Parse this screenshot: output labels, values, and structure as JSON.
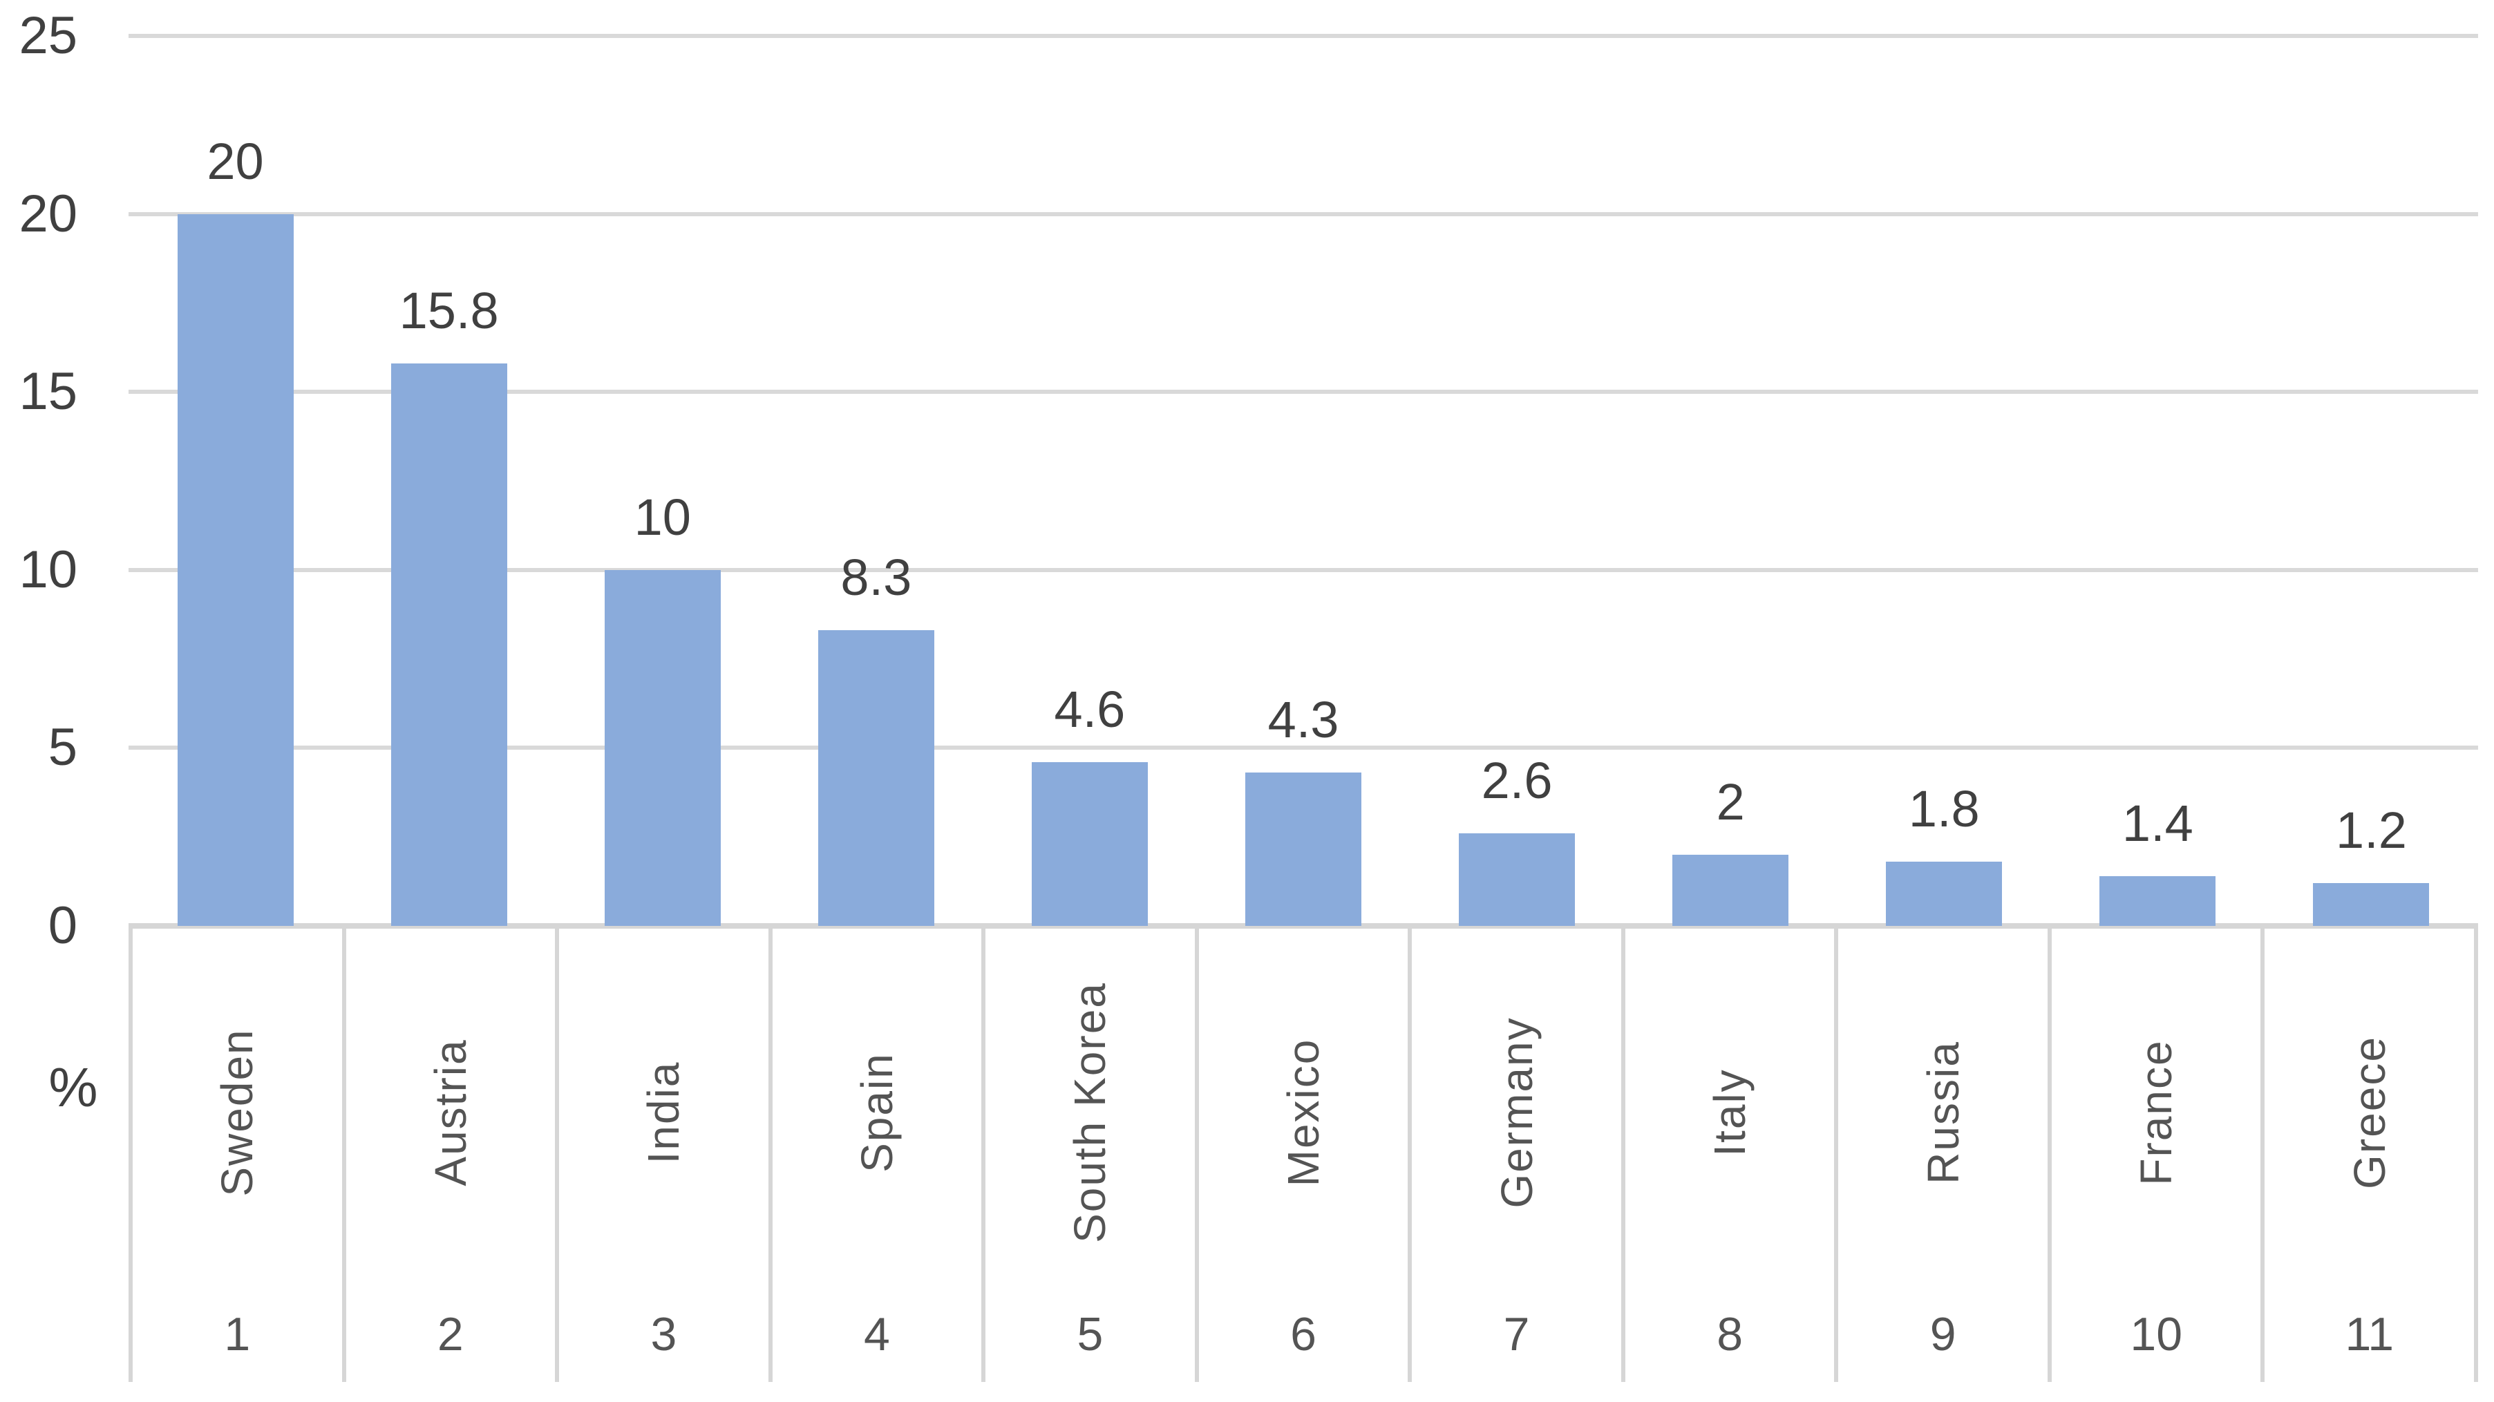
{
  "chart_data": {
    "type": "bar",
    "title": "",
    "xlabel": "",
    "ylabel": "%",
    "categories": [
      "Sweden",
      "Austria",
      "India",
      "Spain",
      "South Korea",
      "Mexico",
      "Germany",
      "Italy",
      "Russia",
      "France",
      "Greece"
    ],
    "category_ranks": [
      "1",
      "2",
      "3",
      "4",
      "5",
      "6",
      "7",
      "8",
      "9",
      "10",
      "11"
    ],
    "values": [
      20,
      15.8,
      10,
      8.3,
      4.6,
      4.3,
      2.6,
      2,
      1.8,
      1.4,
      1.2
    ],
    "value_labels": [
      "20",
      "15.8",
      "10",
      "8.3",
      "4.6",
      "4.3",
      "2.6",
      "2",
      "1.8",
      "1.4",
      "1.2"
    ],
    "yticks": [
      0,
      5,
      10,
      15,
      20,
      25
    ],
    "ytick_labels": [
      "0",
      "5",
      "10",
      "15",
      "20",
      "25"
    ],
    "ylim": [
      0,
      25
    ],
    "grid": true,
    "legend": false,
    "colors": {
      "bar": "#8AABDB",
      "gridline": "#D9D9D9",
      "baseline": "#D6D6D6",
      "tick_text": "#404040",
      "value_text": "#404040",
      "category_text": "#545454"
    }
  }
}
